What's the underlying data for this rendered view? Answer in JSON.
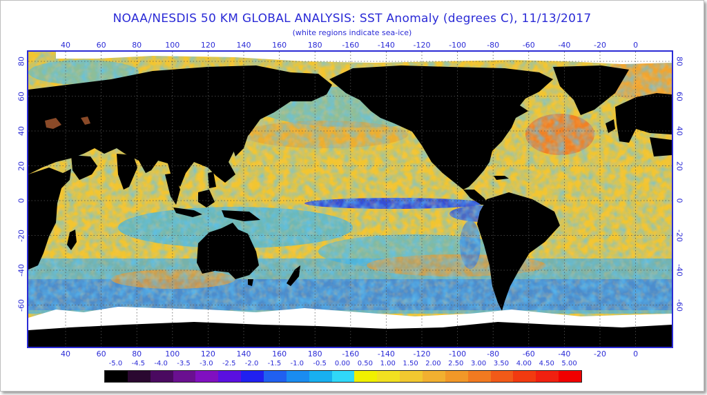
{
  "title": "NOAA/NESDIS 50 KM GLOBAL ANALYSIS: SST Anomaly (degrees C), 11/13/2017",
  "subtitle": "(white regions indicate sea-ice)",
  "lon_labels": [
    "40",
    "60",
    "80",
    "100",
    "120",
    "140",
    "160",
    "180",
    "-160",
    "-140",
    "-120",
    "-100",
    "-80",
    "-60",
    "-40",
    "-20",
    "0"
  ],
  "lat_labels": [
    "80",
    "60",
    "40",
    "20",
    "0",
    "-20",
    "-40",
    "-60"
  ],
  "legend": {
    "labels": [
      "-5.0",
      "-4.5",
      "-4.0",
      "-3.5",
      "-3.0",
      "-2.5",
      "-2.0",
      "-1.5",
      "-1.0",
      "-0.5",
      "0.00",
      "0.50",
      "1.00",
      "1.50",
      "2.00",
      "2.50",
      "3.00",
      "3.50",
      "4.00",
      "4.50",
      "5.00"
    ],
    "colors": [
      "#000000",
      "#2a0830",
      "#4a0a60",
      "#6a1090",
      "#8010c0",
      "#5a10e0",
      "#2020f0",
      "#2060f0",
      "#1a8cf0",
      "#18b0f0",
      "#30d8f8",
      "#f0f000",
      "#f2e020",
      "#f2c830",
      "#f2b030",
      "#f29828",
      "#f27a20",
      "#f25a18",
      "#f23a10",
      "#f02010",
      "#f00000"
    ]
  },
  "map": {
    "ocean_color": "#f2c530",
    "land_color": "#000000",
    "ice_color": "#ffffff",
    "grid_color": "#555555"
  }
}
